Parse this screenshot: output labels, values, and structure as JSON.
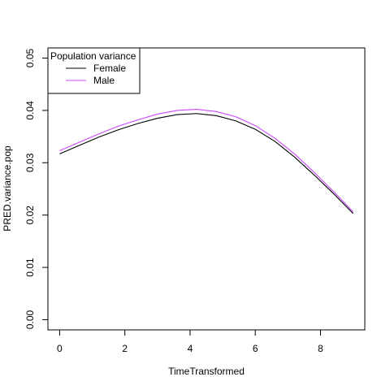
{
  "chart_data": {
    "type": "line",
    "xlabel": "TimeTransformed",
    "ylabel": "PRED.variance.pop",
    "xlim": [
      0,
      9
    ],
    "ylim": [
      0,
      0.05
    ],
    "xticks": [
      "0",
      "2",
      "4",
      "6",
      "8"
    ],
    "yticks": [
      "0.00",
      "0.01",
      "0.02",
      "0.03",
      "0.04",
      "0.05"
    ],
    "legend": {
      "title": "Population variance",
      "position": "top-left"
    },
    "x": [
      0,
      0.6,
      1.2,
      1.8,
      2.4,
      3.0,
      3.6,
      4.2,
      4.8,
      5.4,
      6.0,
      6.6,
      7.2,
      7.8,
      8.4,
      9.0
    ],
    "series": [
      {
        "name": "Female",
        "color": "#000000",
        "values": [
          0.0317,
          0.0333,
          0.0349,
          0.0363,
          0.0375,
          0.0385,
          0.0392,
          0.0394,
          0.039,
          0.038,
          0.0364,
          0.0341,
          0.0311,
          0.0277,
          0.0241,
          0.0203
        ]
      },
      {
        "name": "Male",
        "color": "#cc44ff",
        "values": [
          0.0323,
          0.0339,
          0.0355,
          0.037,
          0.0382,
          0.0393,
          0.04,
          0.0402,
          0.0398,
          0.0388,
          0.0371,
          0.0347,
          0.0317,
          0.0282,
          0.0245,
          0.0206
        ]
      }
    ]
  }
}
